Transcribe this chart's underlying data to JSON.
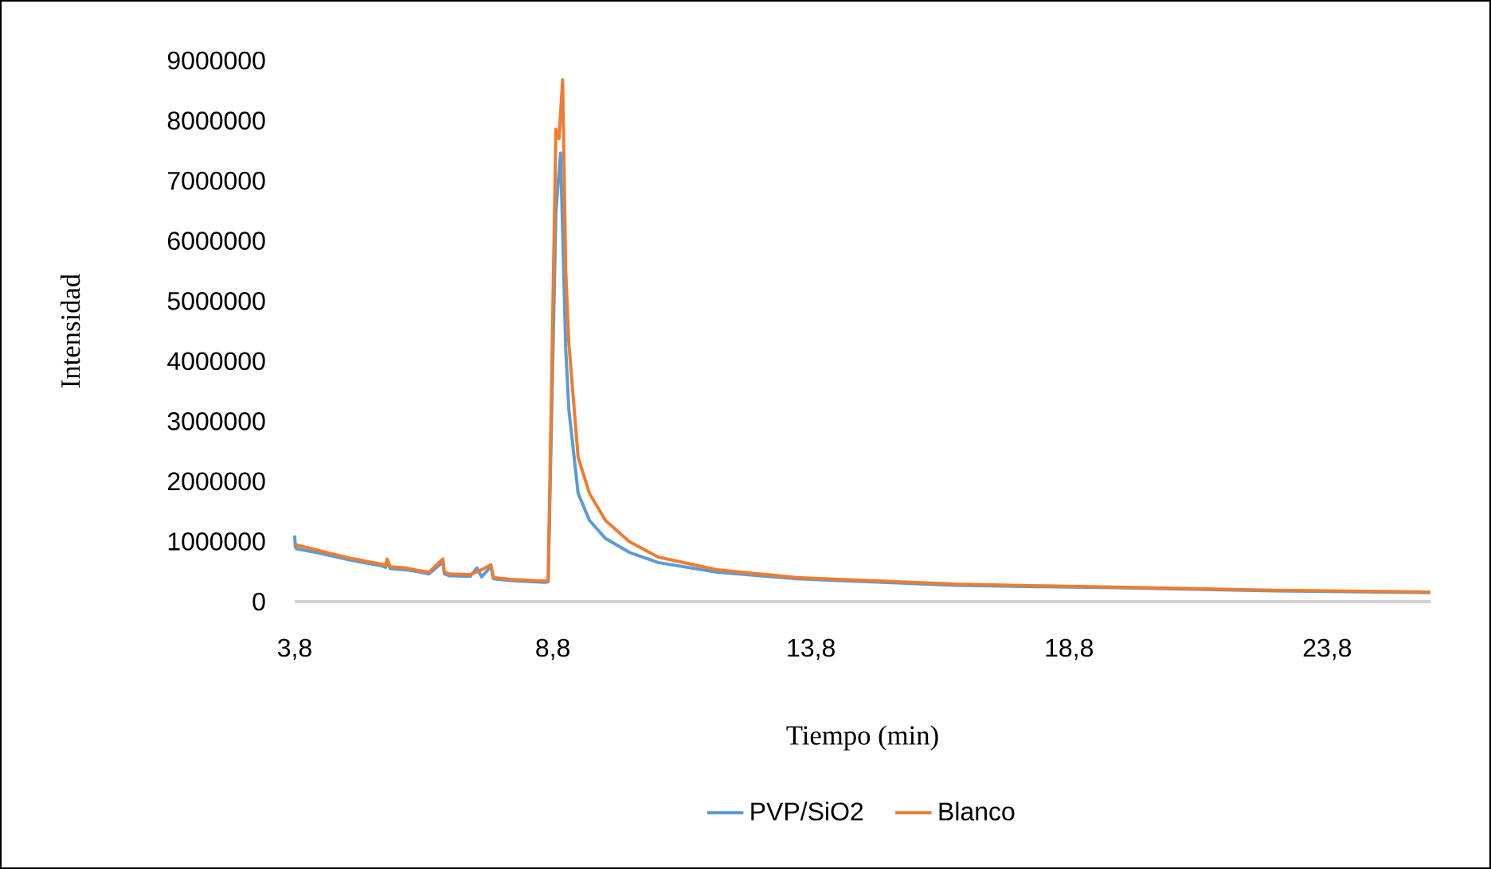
{
  "chart_data": {
    "type": "line",
    "xlabel": "Tiempo (min)",
    "ylabel": "Intensidad",
    "xlim": [
      3.8,
      25.8
    ],
    "ylim": [
      0,
      9000000
    ],
    "xticks": [
      {
        "value": 3.8,
        "label": "3,8"
      },
      {
        "value": 8.8,
        "label": "8,8"
      },
      {
        "value": 13.8,
        "label": "13,8"
      },
      {
        "value": 18.8,
        "label": "18,8"
      },
      {
        "value": 23.8,
        "label": "23,8"
      }
    ],
    "yticks": [
      0,
      1000000,
      2000000,
      3000000,
      4000000,
      5000000,
      6000000,
      7000000,
      8000000,
      9000000
    ],
    "grid": false,
    "legend": "bottom",
    "marker": "none",
    "line_style": "solid",
    "series": [
      {
        "name": "PVP/SiO2",
        "color": "#5b9bd5",
        "x": [
          3.8,
          3.81,
          3.83,
          4.26,
          4.88,
          5.5,
          5.56,
          5.59,
          5.65,
          5.96,
          6.18,
          6.4,
          6.67,
          6.7,
          6.8,
          7.2,
          7.33,
          7.42,
          7.6,
          7.65,
          7.97,
          8.65,
          8.71,
          8.86,
          8.95,
          9.05,
          9.11,
          9.29,
          9.51,
          9.82,
          10.28,
          10.84,
          11.98,
          13.52,
          16.61,
          19.7,
          22.78,
          25.8
        ],
        "values": [
          1100000,
          920000,
          880000,
          810000,
          690000,
          590000,
          570000,
          680000,
          550000,
          530000,
          500000,
          460000,
          660000,
          460000,
          430000,
          420000,
          560000,
          410000,
          580000,
          380000,
          350000,
          320000,
          330000,
          6500000,
          7460000,
          4200000,
          3200000,
          1800000,
          1350000,
          1050000,
          820000,
          650000,
          490000,
          380000,
          270000,
          230000,
          180000,
          150000
        ]
      },
      {
        "name": "Blanco",
        "color": "#ed7d31",
        "x": [
          3.8,
          4.26,
          4.88,
          5.5,
          5.56,
          5.59,
          5.65,
          5.96,
          6.18,
          6.4,
          6.67,
          6.7,
          6.8,
          7.2,
          7.35,
          7.6,
          7.65,
          7.97,
          8.65,
          8.71,
          8.86,
          8.92,
          8.99,
          9.05,
          9.11,
          9.29,
          9.51,
          9.82,
          10.28,
          10.84,
          11.98,
          13.52,
          16.61,
          19.7,
          22.78,
          25.8
        ],
        "values": [
          950000,
          850000,
          720000,
          620000,
          600000,
          710000,
          580000,
          560000,
          520000,
          490000,
          710000,
          490000,
          460000,
          450000,
          500000,
          610000,
          400000,
          370000,
          340000,
          350000,
          7860000,
          7700000,
          8680000,
          5500000,
          4300000,
          2400000,
          1800000,
          1350000,
          1000000,
          740000,
          530000,
          400000,
          290000,
          240000,
          190000,
          160000
        ]
      }
    ]
  }
}
